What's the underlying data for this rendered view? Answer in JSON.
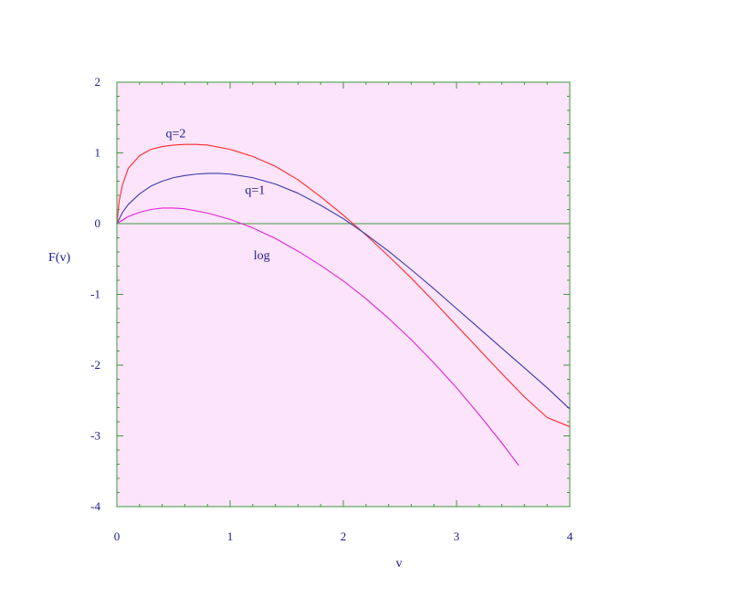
{
  "chart_data": {
    "type": "line",
    "title": "",
    "xlabel": "v",
    "ylabel": "F(v)",
    "xlim": [
      0,
      4
    ],
    "ylim": [
      -4,
      2
    ],
    "xticks": [
      0,
      1,
      2,
      3,
      4
    ],
    "xtick_labels": [
      "0",
      "1",
      "2",
      "3",
      "4"
    ],
    "yticks": [
      2,
      1,
      0,
      -1,
      -2,
      -3,
      -4
    ],
    "ytick_labels": [
      "2",
      "1",
      "0",
      "-1",
      "-2",
      "-3",
      "-4"
    ],
    "x_minor_step": 0.2,
    "y_minor_step": 0.2,
    "grid": false,
    "zero_line": true,
    "colors": {
      "background": "#ffffff",
      "plot_background": "#fce4fa",
      "frame": "#3c9a3c",
      "text": "#1a1a8c"
    },
    "series": [
      {
        "name": "q=2",
        "color": "#ff2a2a",
        "x": [
          0,
          0.02,
          0.05,
          0.1,
          0.2,
          0.3,
          0.4,
          0.5,
          0.6,
          0.7,
          0.8,
          1.0,
          1.2,
          1.4,
          1.6,
          1.8,
          2.0,
          2.2,
          2.4,
          2.6,
          2.8,
          3.0,
          3.2,
          3.4,
          3.6,
          3.8,
          4.0
        ],
        "y": [
          0,
          0.32,
          0.55,
          0.78,
          0.96,
          1.05,
          1.09,
          1.11,
          1.12,
          1.12,
          1.11,
          1.05,
          0.95,
          0.81,
          0.62,
          0.38,
          0.12,
          -0.16,
          -0.46,
          -0.77,
          -1.1,
          -1.44,
          -1.78,
          -2.12,
          -2.45,
          -2.74,
          -2.87
        ]
      },
      {
        "name": "q=1",
        "color": "#3a3aa8",
        "x": [
          0,
          0.05,
          0.1,
          0.2,
          0.3,
          0.4,
          0.5,
          0.6,
          0.7,
          0.8,
          0.9,
          1.0,
          1.2,
          1.4,
          1.6,
          1.8,
          2.0,
          2.2,
          2.4,
          2.6,
          2.8,
          3.0,
          3.2,
          3.4,
          3.6,
          3.8,
          4.0
        ],
        "y": [
          0,
          0.16,
          0.27,
          0.42,
          0.53,
          0.6,
          0.65,
          0.68,
          0.7,
          0.71,
          0.71,
          0.7,
          0.65,
          0.56,
          0.43,
          0.26,
          0.07,
          -0.15,
          -0.39,
          -0.65,
          -0.92,
          -1.2,
          -1.48,
          -1.76,
          -2.04,
          -2.32,
          -2.62
        ]
      },
      {
        "name": "log",
        "color": "#e024d8",
        "x": [
          0,
          0.05,
          0.1,
          0.2,
          0.3,
          0.4,
          0.5,
          0.6,
          0.8,
          1.0,
          1.2,
          1.4,
          1.6,
          1.8,
          2.0,
          2.2,
          2.4,
          2.6,
          2.8,
          3.0,
          3.2,
          3.4,
          3.55
        ],
        "y": [
          0,
          0.05,
          0.1,
          0.16,
          0.2,
          0.22,
          0.22,
          0.21,
          0.15,
          0.06,
          -0.06,
          -0.21,
          -0.39,
          -0.59,
          -0.81,
          -1.06,
          -1.34,
          -1.64,
          -1.97,
          -2.32,
          -2.7,
          -3.1,
          -3.42
        ]
      }
    ],
    "annotations": [
      {
        "text": "q=2",
        "x": 0.52,
        "y": 1.27
      },
      {
        "text": "q=1",
        "x": 1.22,
        "y": 0.47
      },
      {
        "text": "log",
        "x": 1.28,
        "y": -0.45
      }
    ]
  }
}
